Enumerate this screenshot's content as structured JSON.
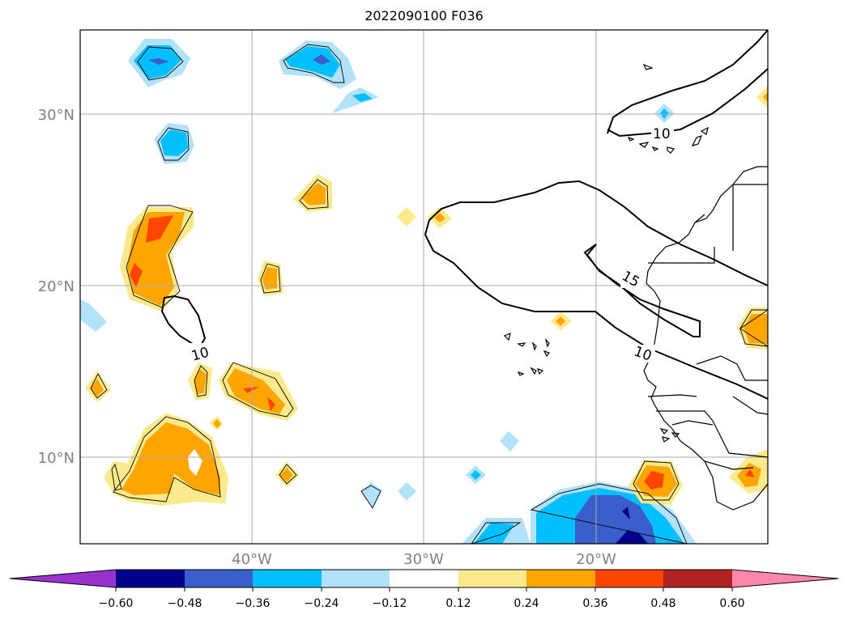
{
  "title": "2022090100 F036",
  "map": {
    "lat_labels": [
      "30°N",
      "20°N",
      "10°N"
    ],
    "lon_labels": [
      "40°W",
      "30°W",
      "20°W"
    ],
    "contour_labels": [
      "10",
      "10",
      "15",
      "10"
    ]
  },
  "colorbar": {
    "colors": [
      "#9932cc",
      "#00008b",
      "#3a5fcd",
      "#00bfff",
      "#b2e2fa",
      "#ffffff",
      "#fce98c",
      "#ffa500",
      "#ff4500",
      "#b22222",
      "#ff88aa"
    ],
    "tick_labels": [
      "−0.60",
      "−0.48",
      "−0.36",
      "−0.24",
      "−0.12",
      "0.12",
      "0.24",
      "0.36",
      "0.48",
      "0.60"
    ]
  },
  "colors": {
    "light_blue": "#b2e2fa",
    "blue": "#00bfff",
    "royal_blue": "#3a5fcd",
    "navy": "#00008b",
    "yellow": "#fce98c",
    "orange": "#ffa500",
    "red_orange": "#ff4500"
  }
}
